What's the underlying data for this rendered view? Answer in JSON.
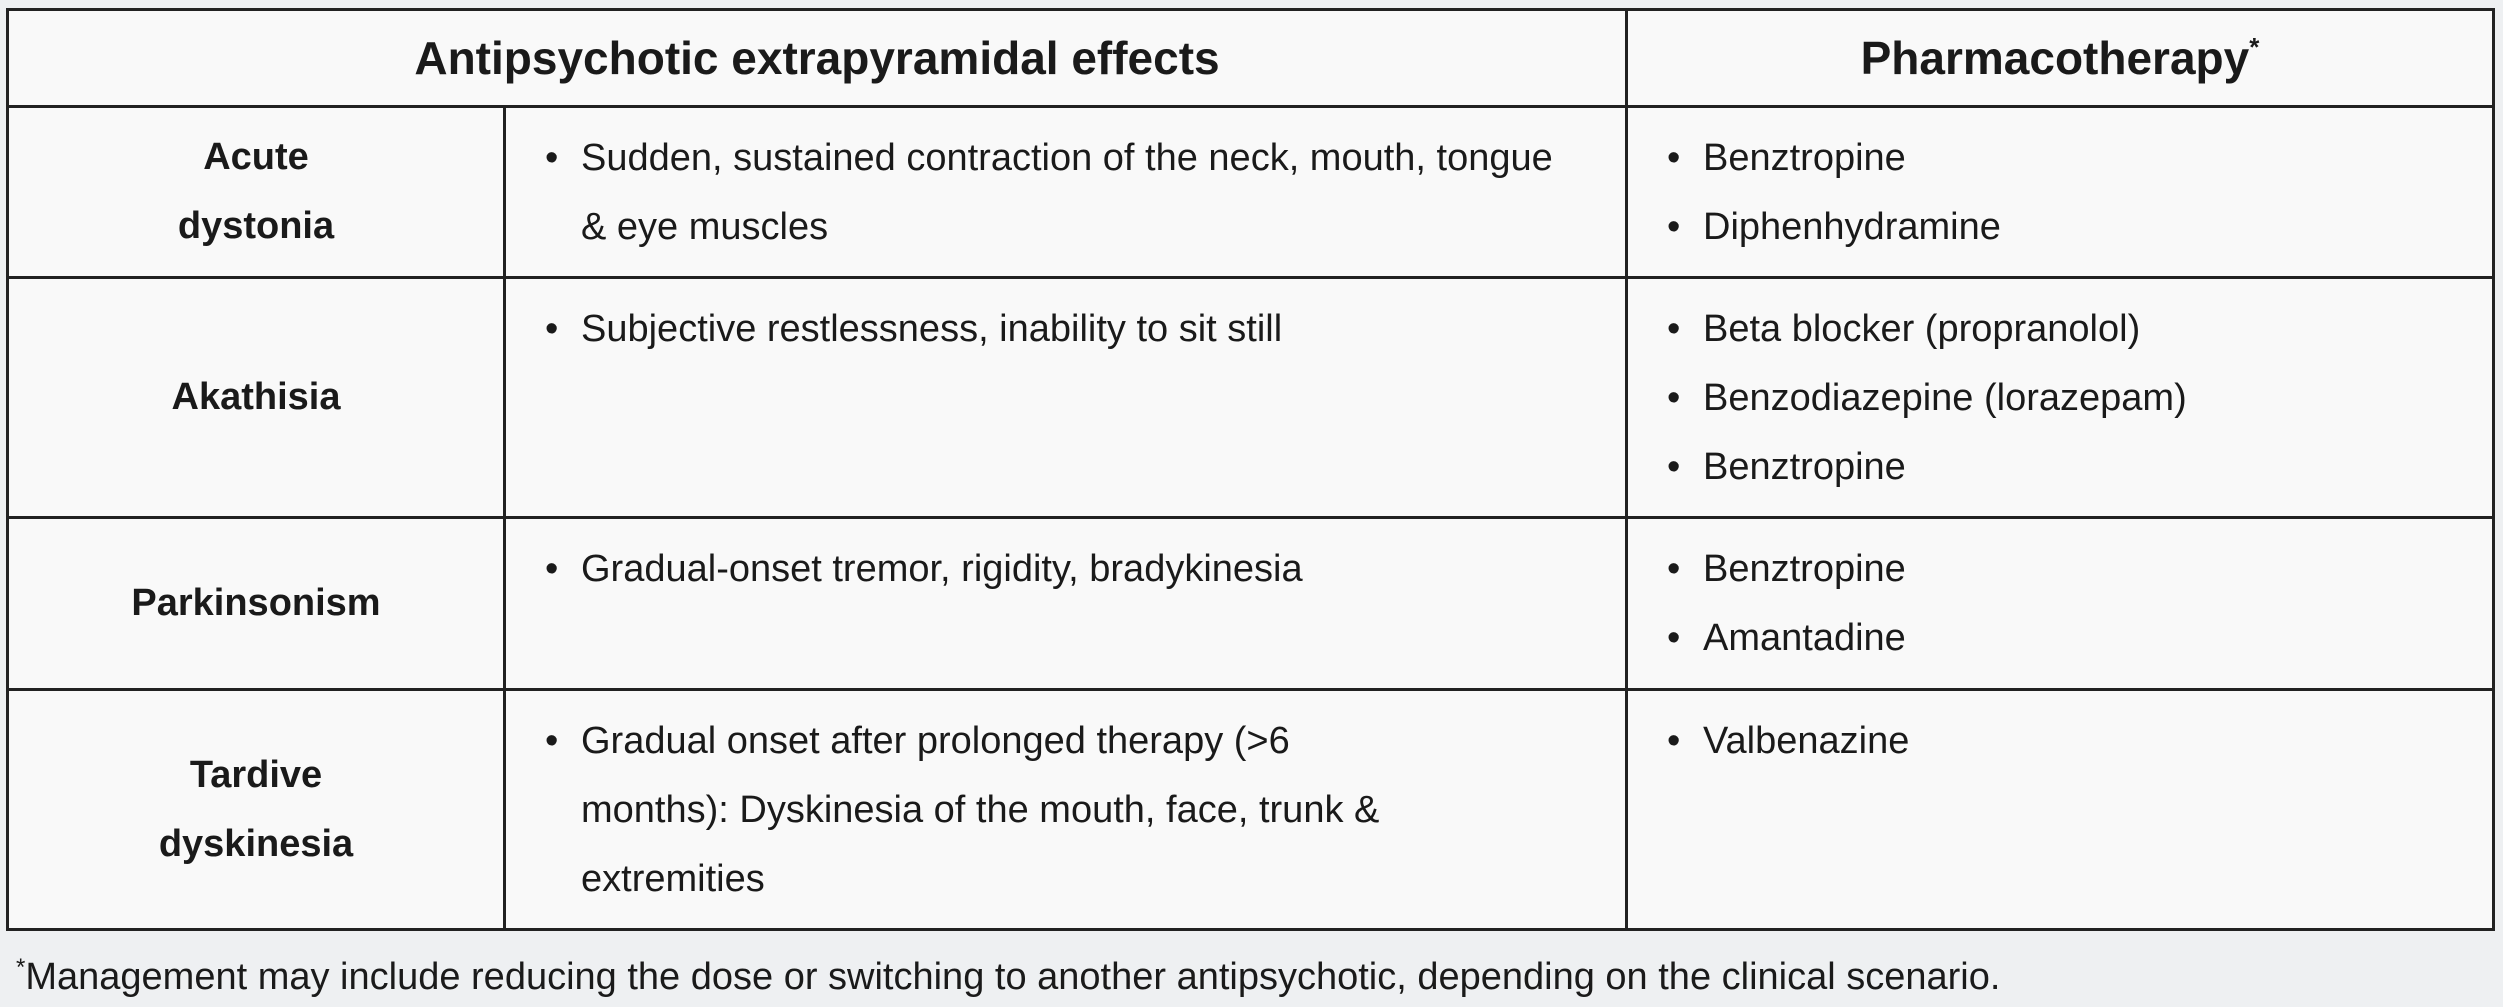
{
  "header": {
    "col1": "Antipsychotic extrapyramidal effects",
    "col2": "Pharmacotherapy",
    "col2_marker": "*"
  },
  "rows": [
    {
      "name": "Acute dystonia",
      "effects": [
        "Sudden, sustained contraction of the neck, mouth, tongue & eye muscles"
      ],
      "therapy": [
        "Benztropine",
        "Diphenhydramine"
      ]
    },
    {
      "name": "Akathisia",
      "effects": [
        "Subjective restlessness, inability to sit still"
      ],
      "therapy": [
        "Beta blocker (propranolol)",
        "Benzodiazepine (lorazepam)",
        "Benztropine"
      ]
    },
    {
      "name": "Parkinsonism",
      "effects": [
        "Gradual-onset tremor, rigidity, bradykinesia"
      ],
      "therapy": [
        "Benztropine",
        "Amantadine"
      ]
    },
    {
      "name": "Tardive dyskinesia",
      "effects": [
        "Gradual onset after prolonged therapy (>6 months): Dyskinesia of the mouth, face, trunk & extremities"
      ],
      "therapy": [
        "Valbenazine"
      ]
    }
  ],
  "footnote": {
    "marker": "*",
    "text": "Management may include reducing the dose or switching to another antipsychotic, depending on the clinical scenario."
  }
}
